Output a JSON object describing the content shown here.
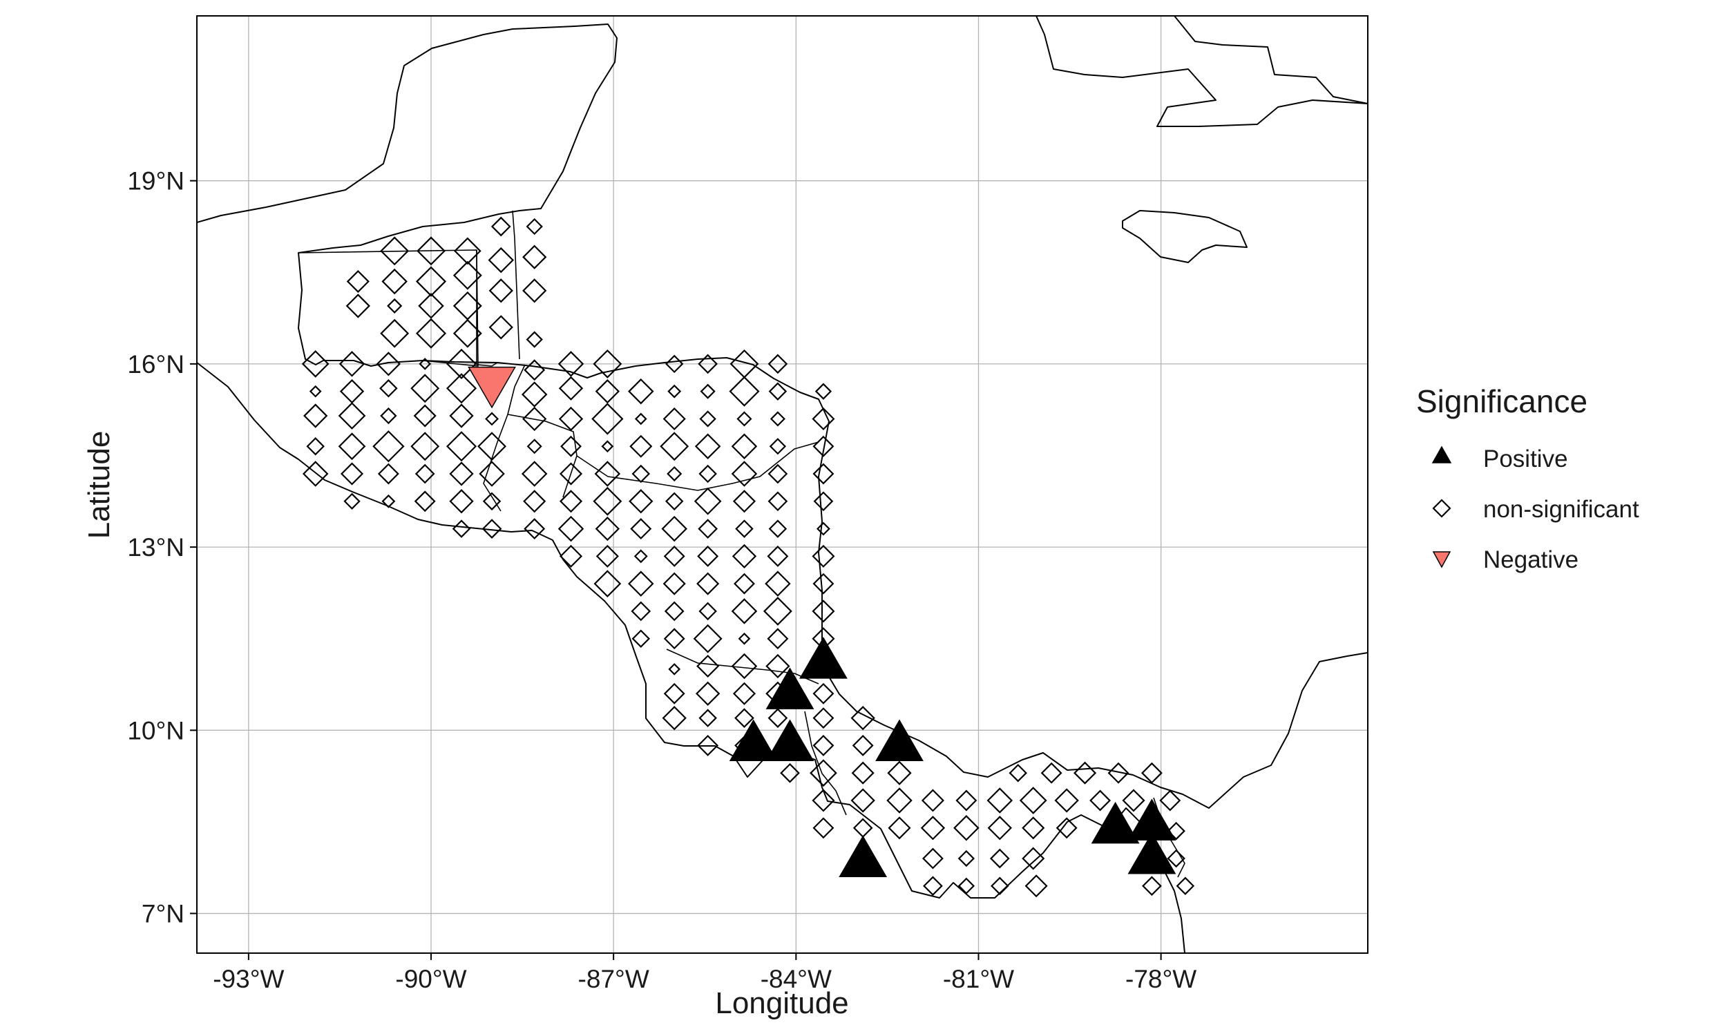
{
  "chart_data": {
    "type": "scatter",
    "xlabel": "Longitude",
    "ylabel": "Latitude",
    "xlim": [
      -93.85,
      -74.6
    ],
    "ylim": [
      6.35,
      21.7
    ],
    "x_ticks": [
      -93,
      -90,
      -87,
      -84,
      -81,
      -78
    ],
    "x_tick_labels": [
      "-93°W",
      "-90°W",
      "-87°W",
      "-84°W",
      "-81°W",
      "-78°W"
    ],
    "y_ticks": [
      7,
      10,
      13,
      16,
      19
    ],
    "y_tick_labels": [
      "7°N",
      "10°N",
      "13°N",
      "16°N",
      "19°N"
    ],
    "grid": true,
    "legend": {
      "title": "Significance",
      "placement": "right",
      "entries": [
        {
          "label": "Positive",
          "shape": "triangle-up",
          "color": "#000000"
        },
        {
          "label": "non-significant",
          "shape": "diamond-open",
          "color": "#000000"
        },
        {
          "label": "Negative",
          "shape": "triangle-down",
          "color": "#F8766D"
        }
      ]
    },
    "colors": {
      "positive": "#000000",
      "negative": "#F8766D",
      "grid": "#b3b3b3",
      "coast": "#000000"
    },
    "series": [
      {
        "name": "Positive",
        "points": [
          [
            -83.55,
            11.15,
            1.0
          ],
          [
            -84.1,
            10.65,
            1.0
          ],
          [
            -84.7,
            9.8,
            1.0
          ],
          [
            -84.1,
            9.8,
            1.0
          ],
          [
            -82.3,
            9.8,
            1.0
          ],
          [
            -82.9,
            7.9,
            1.0
          ],
          [
            -78.75,
            8.45,
            1.0
          ],
          [
            -78.15,
            8.5,
            1.0
          ],
          [
            -78.15,
            7.95,
            1.0
          ]
        ]
      },
      {
        "name": "Negative",
        "points": [
          [
            -89.0,
            15.65,
            1.0
          ]
        ]
      },
      {
        "name": "non-significant",
        "points": [
          [
            -90.6,
            17.85,
            0.7
          ],
          [
            -90.0,
            17.85,
            0.7
          ],
          [
            -89.4,
            17.85,
            0.65
          ],
          [
            -88.85,
            18.25,
            0.4
          ],
          [
            -88.3,
            18.25,
            0.3
          ],
          [
            -91.2,
            17.35,
            0.5
          ],
          [
            -90.6,
            17.35,
            0.6
          ],
          [
            -90.0,
            17.35,
            0.75
          ],
          [
            -89.4,
            17.45,
            0.7
          ],
          [
            -88.85,
            17.7,
            0.6
          ],
          [
            -88.3,
            17.75,
            0.55
          ],
          [
            -91.2,
            16.95,
            0.55
          ],
          [
            -90.6,
            16.95,
            0.25
          ],
          [
            -90.0,
            16.95,
            0.6
          ],
          [
            -89.4,
            16.95,
            0.7
          ],
          [
            -88.85,
            17.2,
            0.55
          ],
          [
            -88.3,
            17.2,
            0.55
          ],
          [
            -90.6,
            16.5,
            0.7
          ],
          [
            -90.0,
            16.5,
            0.75
          ],
          [
            -89.4,
            16.5,
            0.7
          ],
          [
            -88.85,
            16.6,
            0.55
          ],
          [
            -88.3,
            16.4,
            0.3
          ],
          [
            -91.9,
            16.0,
            0.65
          ],
          [
            -91.3,
            16.0,
            0.6
          ],
          [
            -90.7,
            16.0,
            0.55
          ],
          [
            -90.1,
            16.0,
            0.15
          ],
          [
            -89.5,
            16.0,
            0.75
          ],
          [
            -88.3,
            15.9,
            0.45
          ],
          [
            -87.7,
            16.0,
            0.6
          ],
          [
            -87.1,
            16.0,
            0.7
          ],
          [
            -86.0,
            16.0,
            0.35
          ],
          [
            -85.45,
            16.0,
            0.4
          ],
          [
            -84.85,
            16.0,
            0.7
          ],
          [
            -84.3,
            16.0,
            0.4
          ],
          [
            -91.9,
            15.55,
            0.15
          ],
          [
            -91.3,
            15.55,
            0.55
          ],
          [
            -90.7,
            15.6,
            0.35
          ],
          [
            -90.1,
            15.6,
            0.7
          ],
          [
            -89.5,
            15.6,
            0.75
          ],
          [
            -88.3,
            15.5,
            0.6
          ],
          [
            -87.7,
            15.6,
            0.55
          ],
          [
            -87.1,
            15.55,
            0.55
          ],
          [
            -86.55,
            15.55,
            0.6
          ],
          [
            -86.0,
            15.55,
            0.2
          ],
          [
            -85.45,
            15.55,
            0.25
          ],
          [
            -84.85,
            15.55,
            0.75
          ],
          [
            -84.3,
            15.55,
            0.35
          ],
          [
            -83.55,
            15.55,
            0.3
          ],
          [
            -91.9,
            15.15,
            0.55
          ],
          [
            -91.3,
            15.15,
            0.65
          ],
          [
            -90.7,
            15.15,
            0.3
          ],
          [
            -90.1,
            15.15,
            0.5
          ],
          [
            -89.5,
            15.15,
            0.55
          ],
          [
            -89.0,
            15.1,
            0.2
          ],
          [
            -88.3,
            15.1,
            0.55
          ],
          [
            -87.7,
            15.1,
            0.55
          ],
          [
            -87.1,
            15.1,
            0.8
          ],
          [
            -86.55,
            15.1,
            0.15
          ],
          [
            -86.0,
            15.1,
            0.5
          ],
          [
            -85.45,
            15.1,
            0.3
          ],
          [
            -84.85,
            15.1,
            0.25
          ],
          [
            -84.3,
            15.1,
            0.25
          ],
          [
            -83.55,
            15.1,
            0.5
          ],
          [
            -91.9,
            14.65,
            0.35
          ],
          [
            -91.3,
            14.65,
            0.65
          ],
          [
            -90.7,
            14.65,
            0.8
          ],
          [
            -90.1,
            14.65,
            0.7
          ],
          [
            -89.5,
            14.65,
            0.75
          ],
          [
            -89.0,
            14.65,
            0.7
          ],
          [
            -88.3,
            14.65,
            0.25
          ],
          [
            -87.7,
            14.65,
            0.45
          ],
          [
            -87.1,
            14.65,
            0.15
          ],
          [
            -86.55,
            14.65,
            0.5
          ],
          [
            -86.0,
            14.65,
            0.7
          ],
          [
            -85.45,
            14.65,
            0.6
          ],
          [
            -84.85,
            14.65,
            0.6
          ],
          [
            -84.3,
            14.65,
            0.3
          ],
          [
            -83.55,
            14.65,
            0.45
          ],
          [
            -91.9,
            14.2,
            0.6
          ],
          [
            -91.3,
            14.2,
            0.5
          ],
          [
            -90.7,
            14.2,
            0.45
          ],
          [
            -90.1,
            14.2,
            0.4
          ],
          [
            -89.5,
            14.2,
            0.55
          ],
          [
            -89.0,
            14.2,
            0.6
          ],
          [
            -88.3,
            14.2,
            0.6
          ],
          [
            -87.7,
            14.2,
            0.5
          ],
          [
            -87.1,
            14.2,
            0.6
          ],
          [
            -86.55,
            14.2,
            0.35
          ],
          [
            -86.0,
            14.2,
            0.25
          ],
          [
            -85.45,
            14.2,
            0.35
          ],
          [
            -84.85,
            14.2,
            0.6
          ],
          [
            -84.3,
            14.2,
            0.4
          ],
          [
            -83.55,
            14.2,
            0.45
          ],
          [
            -91.3,
            13.75,
            0.3
          ],
          [
            -90.7,
            13.75,
            0.2
          ],
          [
            -90.1,
            13.75,
            0.45
          ],
          [
            -89.5,
            13.75,
            0.55
          ],
          [
            -89.0,
            13.75,
            0.35
          ],
          [
            -88.3,
            13.75,
            0.5
          ],
          [
            -87.7,
            13.75,
            0.5
          ],
          [
            -87.1,
            13.75,
            0.7
          ],
          [
            -86.55,
            13.75,
            0.55
          ],
          [
            -86.0,
            13.75,
            0.35
          ],
          [
            -85.45,
            13.75,
            0.65
          ],
          [
            -84.85,
            13.75,
            0.5
          ],
          [
            -84.3,
            13.75,
            0.4
          ],
          [
            -83.55,
            13.75,
            0.4
          ],
          [
            -89.5,
            13.3,
            0.35
          ],
          [
            -89.0,
            13.3,
            0.4
          ],
          [
            -88.3,
            13.3,
            0.45
          ],
          [
            -87.7,
            13.3,
            0.6
          ],
          [
            -87.1,
            13.3,
            0.55
          ],
          [
            -86.55,
            13.3,
            0.45
          ],
          [
            -86.0,
            13.3,
            0.6
          ],
          [
            -85.45,
            13.3,
            0.4
          ],
          [
            -84.85,
            13.3,
            0.35
          ],
          [
            -84.3,
            13.3,
            0.35
          ],
          [
            -83.55,
            13.3,
            0.2
          ],
          [
            -87.7,
            12.85,
            0.5
          ],
          [
            -87.1,
            12.85,
            0.5
          ],
          [
            -86.55,
            12.85,
            0.2
          ],
          [
            -86.0,
            12.85,
            0.45
          ],
          [
            -85.45,
            12.85,
            0.45
          ],
          [
            -84.85,
            12.85,
            0.55
          ],
          [
            -84.3,
            12.85,
            0.45
          ],
          [
            -83.55,
            12.85,
            0.5
          ],
          [
            -87.1,
            12.4,
            0.65
          ],
          [
            -86.55,
            12.4,
            0.6
          ],
          [
            -86.0,
            12.4,
            0.5
          ],
          [
            -85.45,
            12.4,
            0.5
          ],
          [
            -84.85,
            12.4,
            0.45
          ],
          [
            -84.3,
            12.4,
            0.6
          ],
          [
            -83.55,
            12.4,
            0.45
          ],
          [
            -86.55,
            11.95,
            0.4
          ],
          [
            -86.0,
            11.95,
            0.4
          ],
          [
            -85.45,
            11.95,
            0.35
          ],
          [
            -84.85,
            11.95,
            0.6
          ],
          [
            -84.3,
            11.95,
            0.7
          ],
          [
            -83.55,
            11.95,
            0.5
          ],
          [
            -86.55,
            11.5,
            0.35
          ],
          [
            -86.0,
            11.5,
            0.45
          ],
          [
            -85.45,
            11.5,
            0.7
          ],
          [
            -84.85,
            11.5,
            0.15
          ],
          [
            -84.3,
            11.5,
            0.45
          ],
          [
            -83.55,
            11.5,
            0.5
          ],
          [
            -86.0,
            11.0,
            0.15
          ],
          [
            -85.45,
            11.05,
            0.5
          ],
          [
            -84.85,
            11.05,
            0.6
          ],
          [
            -84.3,
            11.05,
            0.55
          ],
          [
            -86.0,
            10.6,
            0.45
          ],
          [
            -85.45,
            10.6,
            0.55
          ],
          [
            -84.85,
            10.6,
            0.5
          ],
          [
            -84.3,
            10.6,
            0.55
          ],
          [
            -83.55,
            10.6,
            0.45
          ],
          [
            -86.0,
            10.2,
            0.55
          ],
          [
            -85.45,
            10.2,
            0.35
          ],
          [
            -84.85,
            10.2,
            0.4
          ],
          [
            -84.3,
            10.2,
            0.4
          ],
          [
            -83.55,
            10.2,
            0.45
          ],
          [
            -82.9,
            10.2,
            0.55
          ],
          [
            -85.45,
            9.75,
            0.45
          ],
          [
            -84.85,
            9.75,
            0.4
          ],
          [
            -83.55,
            9.75,
            0.45
          ],
          [
            -82.9,
            9.75,
            0.45
          ],
          [
            -84.1,
            9.3,
            0.4
          ],
          [
            -83.55,
            9.3,
            0.65
          ],
          [
            -82.9,
            9.3,
            0.5
          ],
          [
            -82.3,
            9.3,
            0.55
          ],
          [
            -80.35,
            9.3,
            0.35
          ],
          [
            -79.8,
            9.3,
            0.45
          ],
          [
            -79.25,
            9.3,
            0.5
          ],
          [
            -78.7,
            9.3,
            0.45
          ],
          [
            -78.15,
            9.3,
            0.45
          ],
          [
            -83.55,
            8.85,
            0.5
          ],
          [
            -82.9,
            8.85,
            0.55
          ],
          [
            -82.3,
            8.85,
            0.6
          ],
          [
            -81.75,
            8.85,
            0.5
          ],
          [
            -81.2,
            8.85,
            0.45
          ],
          [
            -80.65,
            8.85,
            0.6
          ],
          [
            -80.1,
            8.85,
            0.65
          ],
          [
            -79.55,
            8.85,
            0.55
          ],
          [
            -79.0,
            8.85,
            0.45
          ],
          [
            -78.45,
            8.85,
            0.5
          ],
          [
            -77.85,
            8.85,
            0.45
          ],
          [
            -83.55,
            8.4,
            0.45
          ],
          [
            -82.9,
            8.4,
            0.4
          ],
          [
            -82.3,
            8.4,
            0.5
          ],
          [
            -81.75,
            8.4,
            0.55
          ],
          [
            -81.2,
            8.4,
            0.6
          ],
          [
            -80.65,
            8.4,
            0.55
          ],
          [
            -80.1,
            8.4,
            0.5
          ],
          [
            -79.55,
            8.4,
            0.45
          ],
          [
            -77.75,
            8.35,
            0.35
          ],
          [
            -81.75,
            7.9,
            0.45
          ],
          [
            -81.2,
            7.9,
            0.3
          ],
          [
            -80.65,
            7.9,
            0.4
          ],
          [
            -80.1,
            7.9,
            0.5
          ],
          [
            -77.75,
            7.9,
            0.35
          ],
          [
            -81.75,
            7.45,
            0.4
          ],
          [
            -81.2,
            7.45,
            0.3
          ],
          [
            -80.65,
            7.45,
            0.35
          ],
          [
            -80.05,
            7.45,
            0.5
          ],
          [
            -78.15,
            7.45,
            0.4
          ],
          [
            -77.6,
            7.45,
            0.35
          ]
        ]
      }
    ]
  }
}
